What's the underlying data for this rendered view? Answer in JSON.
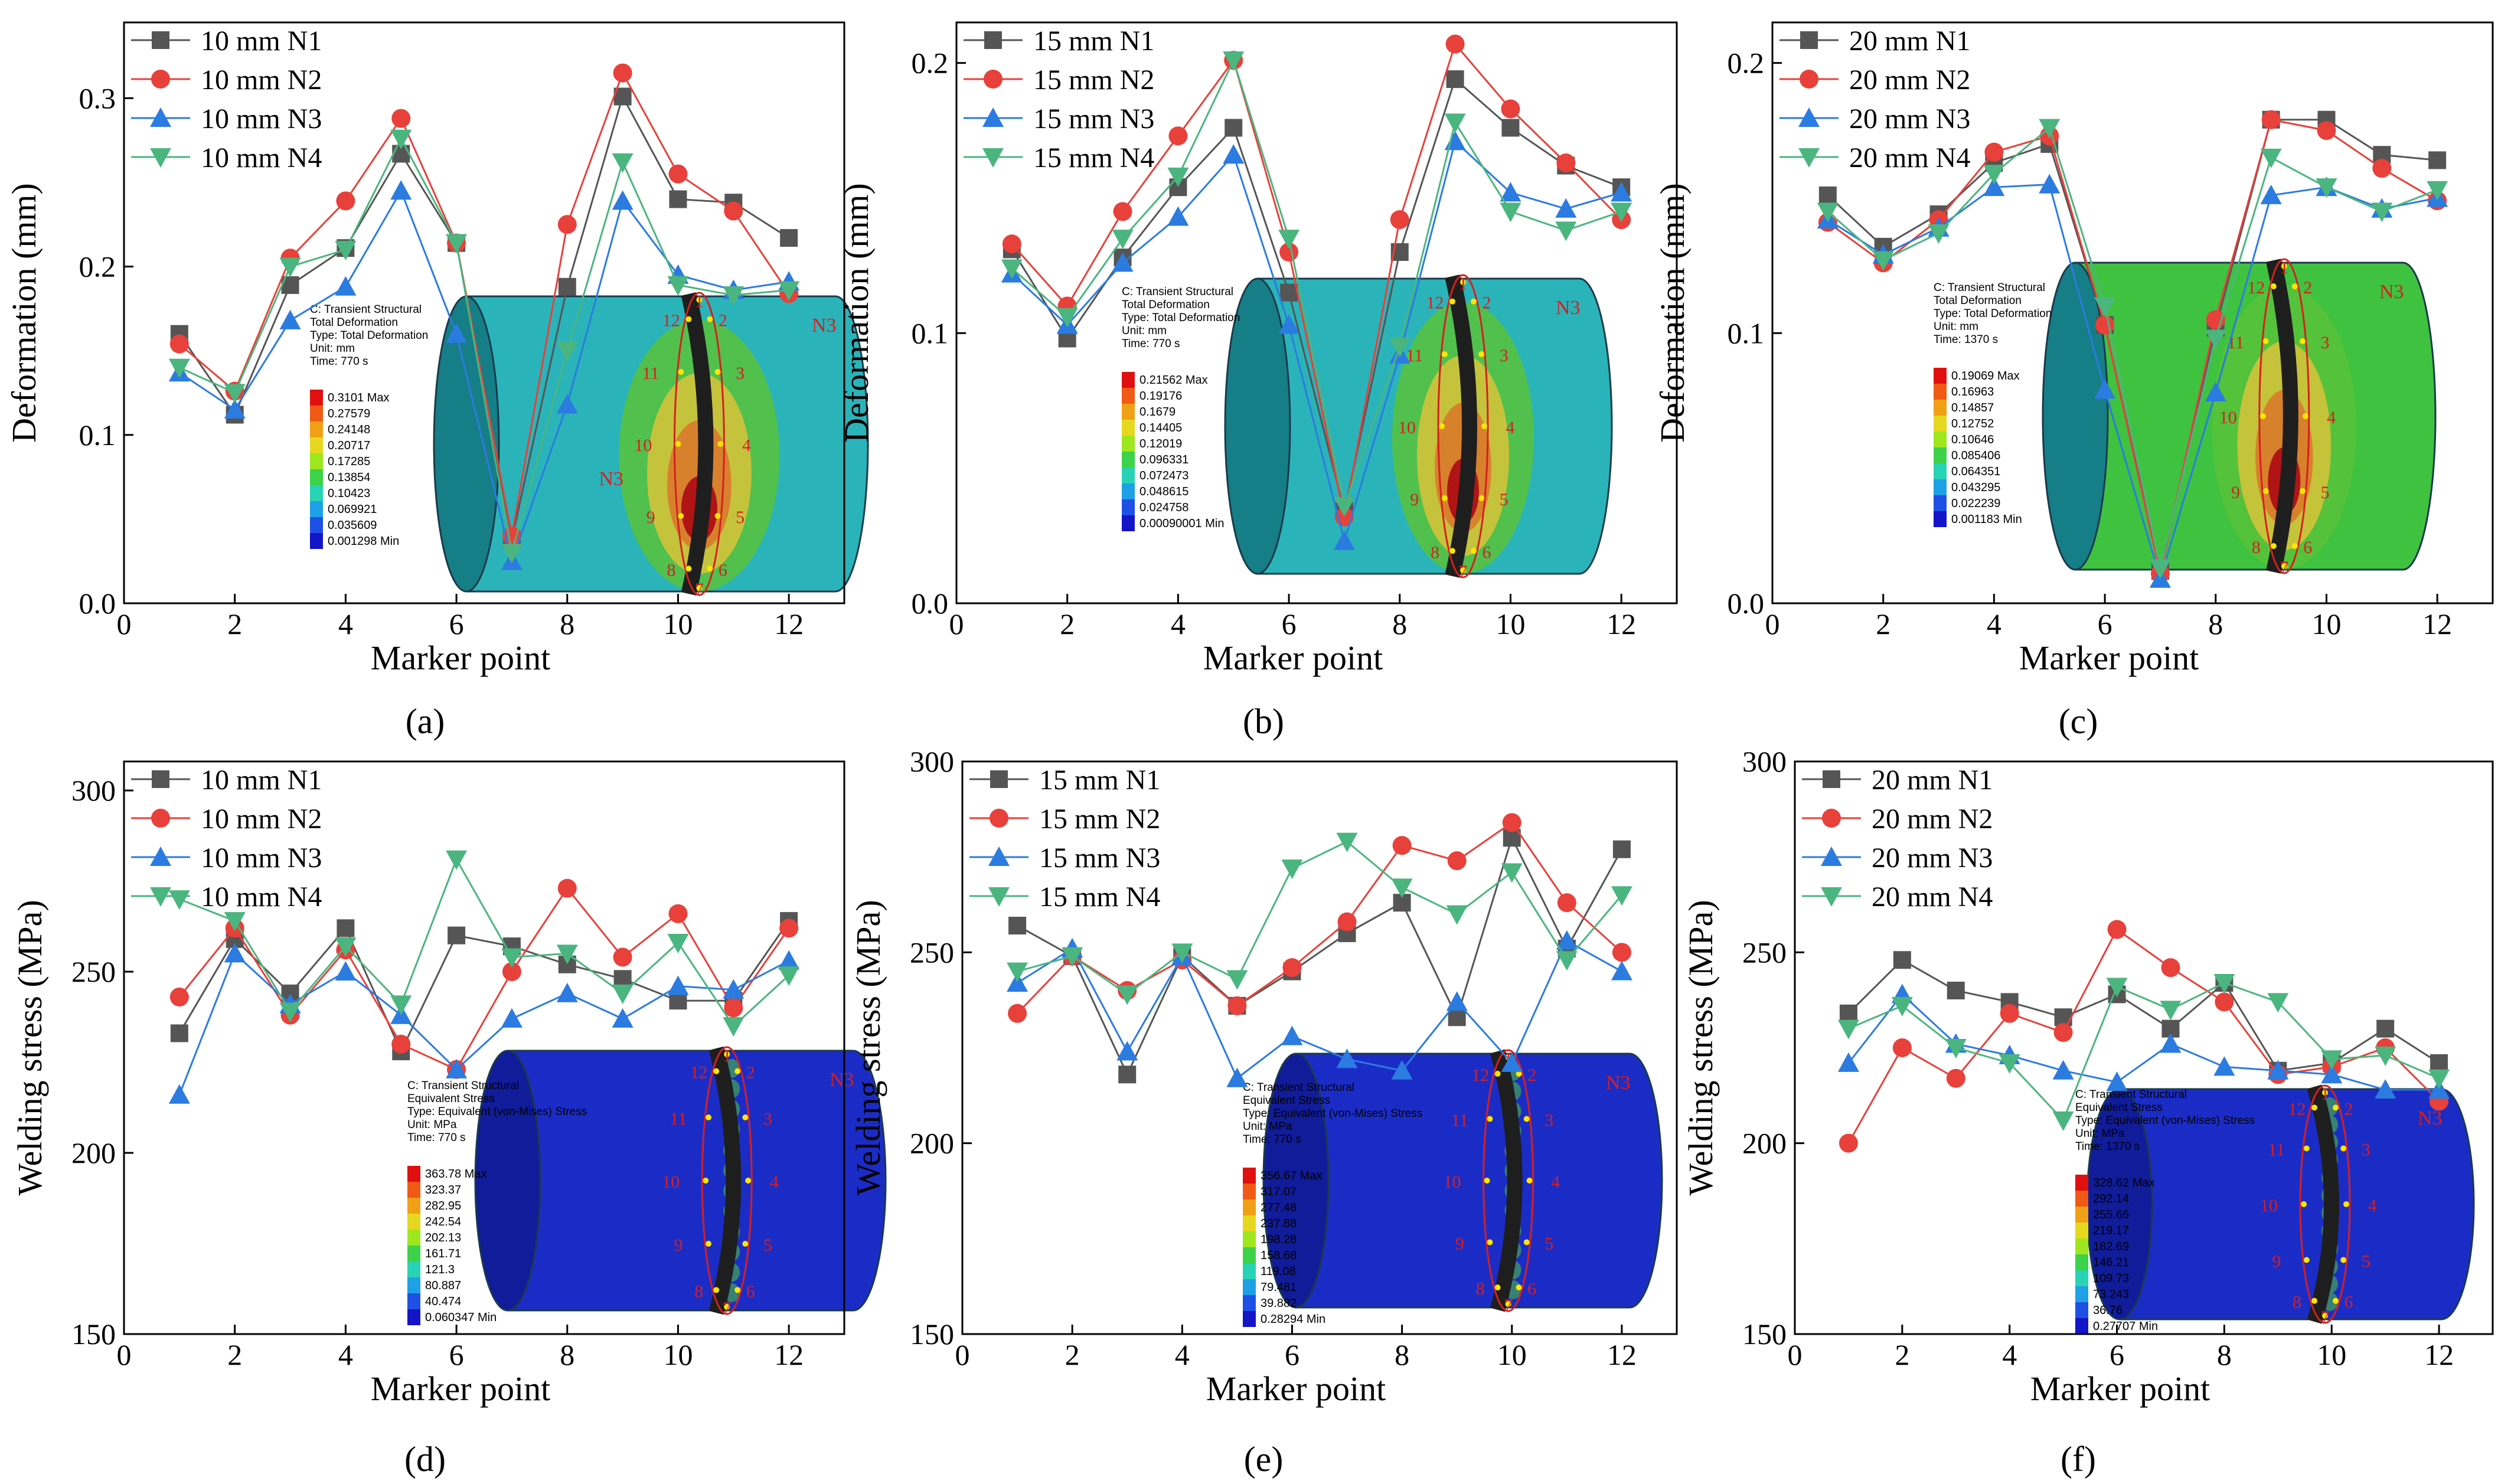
{
  "figure_type": "multi-panel-line-chart",
  "inset_type": "finite-element-contour-plot",
  "colors": {
    "N1": "#555555",
    "N2": "#e8403a",
    "N3": "#2b7be0",
    "N4": "#4bb57f",
    "inset_deformation_body": "#2ab4ba",
    "inset_stress_body": "#1b2cc6",
    "marker_label": "#d61f1f",
    "marker_dot": "#ffe600"
  },
  "legend_markers": [
    "square",
    "circle",
    "triangle-up",
    "triangle-down"
  ],
  "chart_data": [
    {
      "panel": "(a)",
      "type": "line",
      "xlabel": "Marker point",
      "ylabel": "Deformation (mm)",
      "xlim": [
        0,
        13
      ],
      "ylim": [
        0,
        0.345
      ],
      "xticks": [
        "0",
        "2",
        "4",
        "6",
        "8",
        "10",
        "12"
      ],
      "yticks": [
        "0.0",
        "0.1",
        "0.2",
        "0.3"
      ],
      "ytick_values": [
        0,
        0.1,
        0.2,
        0.3
      ],
      "legend_position": "top-left",
      "x": [
        1,
        2,
        3,
        4,
        5,
        6,
        7,
        8,
        9,
        10,
        11,
        12
      ],
      "series": [
        {
          "name": "10 mm N1",
          "values": [
            0.16,
            0.112,
            0.189,
            0.211,
            0.267,
            0.214,
            0.038,
            0.188,
            0.301,
            0.24,
            0.238,
            0.217
          ]
        },
        {
          "name": "10 mm N2",
          "values": [
            0.154,
            0.126,
            0.205,
            0.239,
            0.288,
            0.214,
            0.04,
            0.225,
            0.315,
            0.255,
            0.233,
            0.184
          ]
        },
        {
          "name": "10 mm N3",
          "values": [
            0.137,
            0.115,
            0.168,
            0.188,
            0.245,
            0.16,
            0.025,
            0.118,
            0.239,
            0.195,
            0.186,
            0.191
          ]
        },
        {
          "name": "10 mm N4",
          "values": [
            0.14,
            0.125,
            0.2,
            0.21,
            0.276,
            0.214,
            0.03,
            0.15,
            0.262,
            0.189,
            0.183,
            0.186
          ]
        }
      ],
      "inset": {
        "header": [
          "C: Transient Structural",
          "Total Deformation",
          "Type: Total Deformation",
          "Unit: mm",
          "Time: 770 s"
        ],
        "scale": [
          "0.3101 Max",
          "0.27579",
          "0.24148",
          "0.20717",
          "0.17285",
          "0.13854",
          "0.10423",
          "0.069921",
          "0.035609",
          "0.001298 Min"
        ],
        "body": "deformation",
        "tag": "N3",
        "extra_tag": "N3",
        "markers": [
          "1",
          "2",
          "3",
          "4",
          "5",
          "6",
          "7",
          "8",
          "9",
          "10",
          "11",
          "12"
        ]
      }
    },
    {
      "panel": "(b)",
      "type": "line",
      "xlabel": "Marker point",
      "ylabel": "Deformation (mm)",
      "xlim": [
        0,
        13
      ],
      "ylim": [
        0,
        0.215
      ],
      "xticks": [
        "0",
        "2",
        "4",
        "6",
        "8",
        "10",
        "12"
      ],
      "yticks": [
        "0.0",
        "0.1",
        "0.2"
      ],
      "ytick_values": [
        0,
        0.1,
        0.2
      ],
      "legend_position": "top-left",
      "x": [
        1,
        2,
        3,
        4,
        5,
        6,
        7,
        8,
        9,
        10,
        11,
        12
      ],
      "series": [
        {
          "name": "15 mm N1",
          "values": [
            0.131,
            0.098,
            0.128,
            0.154,
            0.176,
            0.115,
            0.034,
            0.13,
            0.194,
            0.176,
            0.162,
            0.154
          ]
        },
        {
          "name": "15 mm N2",
          "values": [
            0.133,
            0.11,
            0.145,
            0.173,
            0.201,
            0.13,
            0.032,
            0.142,
            0.207,
            0.183,
            0.163,
            0.142
          ]
        },
        {
          "name": "15 mm N3",
          "values": [
            0.122,
            0.103,
            0.126,
            0.143,
            0.166,
            0.103,
            0.023,
            0.092,
            0.171,
            0.152,
            0.146,
            0.152
          ]
        },
        {
          "name": "15 mm N4",
          "values": [
            0.124,
            0.106,
            0.135,
            0.158,
            0.201,
            0.135,
            0.036,
            0.095,
            0.178,
            0.145,
            0.138,
            0.145
          ]
        }
      ],
      "inset": {
        "header": [
          "C: Transient Structural",
          "Total Deformation",
          "Type: Total Deformation",
          "Unit: mm",
          "Time: 770 s"
        ],
        "scale": [
          "0.21562 Max",
          "0.19176",
          "0.1679",
          "0.14405",
          "0.12019",
          "0.096331",
          "0.072473",
          "0.048615",
          "0.024758",
          "0.00090001 Min"
        ],
        "body": "deformation",
        "tag": "N3",
        "extra_tag": "",
        "markers": [
          "1",
          "2",
          "3",
          "4",
          "5",
          "6",
          "7",
          "8",
          "9",
          "10",
          "11",
          "12"
        ]
      }
    },
    {
      "panel": "(c)",
      "type": "line",
      "xlabel": "Marker point",
      "ylabel": "Deformation (mm)",
      "xlim": [
        0,
        13
      ],
      "ylim": [
        0,
        0.215
      ],
      "xticks": [
        "0",
        "2",
        "4",
        "6",
        "8",
        "10",
        "12"
      ],
      "yticks": [
        "0.0",
        "0.1",
        "0.2"
      ],
      "ytick_values": [
        0,
        0.1,
        0.2
      ],
      "legend_position": "top-left",
      "x": [
        1,
        2,
        3,
        4,
        5,
        6,
        7,
        8,
        9,
        10,
        11,
        12
      ],
      "series": [
        {
          "name": "20 mm N1",
          "values": [
            0.151,
            0.132,
            0.144,
            0.163,
            0.17,
            0.103,
            0.012,
            0.102,
            0.179,
            0.179,
            0.166,
            0.164
          ]
        },
        {
          "name": "20 mm N2",
          "values": [
            0.141,
            0.126,
            0.142,
            0.167,
            0.173,
            0.103,
            0.011,
            0.105,
            0.179,
            0.175,
            0.161,
            0.149
          ]
        },
        {
          "name": "20 mm N3",
          "values": [
            0.142,
            0.129,
            0.139,
            0.154,
            0.155,
            0.079,
            0.009,
            0.078,
            0.151,
            0.154,
            0.146,
            0.15
          ]
        },
        {
          "name": "20 mm N4",
          "values": [
            0.145,
            0.127,
            0.137,
            0.159,
            0.176,
            0.11,
            0.013,
            0.098,
            0.165,
            0.154,
            0.145,
            0.153
          ]
        }
      ],
      "inset": {
        "header": [
          "C: Transient Structural",
          "Total Deformation",
          "Type: Total Deformation",
          "Unit: mm",
          "Time: 1370 s"
        ],
        "scale": [
          "0.19069 Max",
          "0.16963",
          "0.14857",
          "0.12752",
          "0.10646",
          "0.085406",
          "0.064351",
          "0.043295",
          "0.022239",
          "0.001183 Min"
        ],
        "body": "deformation-green",
        "tag": "N3",
        "extra_tag": "",
        "markers": [
          "1",
          "2",
          "3",
          "4",
          "5",
          "6",
          "7",
          "8",
          "9",
          "10",
          "11",
          "12"
        ]
      }
    },
    {
      "panel": "(d)",
      "type": "line",
      "xlabel": "Marker point",
      "ylabel": "Welding stress (MPa)",
      "xlim": [
        0,
        13
      ],
      "ylim": [
        150,
        308
      ],
      "xticks": [
        "0",
        "2",
        "4",
        "6",
        "8",
        "10",
        "12"
      ],
      "yticks": [
        "150",
        "200",
        "250",
        "300"
      ],
      "ytick_values": [
        150,
        200,
        250,
        300
      ],
      "legend_position": "top-left",
      "x": [
        1,
        2,
        3,
        4,
        5,
        6,
        7,
        8,
        9,
        10,
        11,
        12
      ],
      "series": [
        {
          "name": "10 mm N1",
          "values": [
            233,
            259,
            244,
            262,
            228,
            260,
            257,
            252,
            248,
            242,
            242,
            264
          ]
        },
        {
          "name": "10 mm N2",
          "values": [
            243,
            262,
            238,
            256,
            230,
            223,
            250,
            273,
            254,
            266,
            240,
            262
          ]
        },
        {
          "name": "10 mm N3",
          "values": [
            216,
            255,
            241,
            250,
            238,
            223,
            237,
            244,
            237,
            246,
            245,
            253
          ]
        },
        {
          "name": "10 mm N4",
          "values": [
            270,
            264,
            239,
            257,
            241,
            281,
            254,
            255,
            244,
            258,
            235,
            249
          ]
        }
      ],
      "inset": {
        "header": [
          "C: Transient Structural",
          "Equivalent Stress",
          "Type: Equivalent (von-Mises) Stress",
          "Unit: MPa",
          "Time: 770 s"
        ],
        "scale": [
          "363.78 Max",
          "323.37",
          "282.95",
          "242.54",
          "202.13",
          "161.71",
          "121.3",
          "80.887",
          "40.474",
          "0.060347 Min"
        ],
        "body": "stress",
        "tag": "N3",
        "extra_tag": "",
        "markers": [
          "1",
          "2",
          "3",
          "4",
          "5",
          "6",
          "7",
          "8",
          "9",
          "10",
          "11",
          "12"
        ]
      }
    },
    {
      "panel": "(e)",
      "type": "line",
      "xlabel": "Marker point",
      "ylabel": "Welding stress (MPa)",
      "xlim": [
        0,
        13
      ],
      "ylim": [
        150,
        300
      ],
      "xticks": [
        "0",
        "2",
        "4",
        "6",
        "8",
        "10",
        "12"
      ],
      "yticks": [
        "150",
        "200",
        "250",
        "300"
      ],
      "ytick_values": [
        150,
        200,
        250,
        300
      ],
      "legend_position": "top-left",
      "x": [
        1,
        2,
        3,
        4,
        5,
        6,
        7,
        8,
        9,
        10,
        11,
        12
      ],
      "series": [
        {
          "name": "15 mm N1",
          "values": [
            257,
            249,
            218,
            249,
            236,
            245,
            255,
            263,
            233,
            280,
            251,
            277
          ]
        },
        {
          "name": "15 mm N2",
          "values": [
            234,
            249,
            240,
            248,
            236,
            246,
            258,
            278,
            274,
            284,
            263,
            250
          ]
        },
        {
          "name": "15 mm N3",
          "values": [
            242,
            251,
            224,
            249,
            217,
            228,
            222,
            219,
            237,
            221,
            253,
            245
          ]
        },
        {
          "name": "15 mm N4",
          "values": [
            245,
            249,
            239,
            250,
            243,
            272,
            279,
            267,
            260,
            271,
            248,
            265
          ]
        }
      ],
      "inset": {
        "header": [
          "C: Transient Structural",
          "Equivalent Stress",
          "Type: Equivalent (von-Mises) Stress",
          "Unit: MPa",
          "Time: 770 s"
        ],
        "scale": [
          "356.67 Max",
          "317.07",
          "277.48",
          "237.88",
          "198.28",
          "158.68",
          "119.08",
          "79.481",
          "39.882",
          "0.28294 Min"
        ],
        "body": "stress",
        "tag": "N3",
        "extra_tag": "",
        "markers": [
          "1",
          "2",
          "3",
          "4",
          "5",
          "6",
          "7",
          "8",
          "9",
          "10",
          "11",
          "12"
        ]
      }
    },
    {
      "panel": "(f)",
      "type": "line",
      "xlabel": "Marker point",
      "ylabel": "Welding stress (MPa)",
      "xlim": [
        0,
        13
      ],
      "ylim": [
        150,
        300
      ],
      "xticks": [
        "0",
        "2",
        "4",
        "6",
        "8",
        "10",
        "12"
      ],
      "yticks": [
        "150",
        "200",
        "250",
        "300"
      ],
      "ytick_values": [
        150,
        200,
        250,
        300
      ],
      "legend_position": "top-left",
      "x": [
        1,
        2,
        3,
        4,
        5,
        6,
        7,
        8,
        9,
        10,
        11,
        12
      ],
      "series": [
        {
          "name": "20 mm N1",
          "values": [
            234,
            248,
            240,
            237,
            233,
            239,
            230,
            242,
            219,
            221,
            230,
            221
          ]
        },
        {
          "name": "20 mm N2",
          "values": [
            200,
            225,
            217,
            234,
            229,
            256,
            246,
            237,
            218,
            220,
            225,
            211
          ]
        },
        {
          "name": "20 mm N3",
          "values": [
            221,
            239,
            226,
            223,
            219,
            216,
            226,
            220,
            219,
            218,
            214,
            214
          ]
        },
        {
          "name": "20 mm N4",
          "values": [
            230,
            236,
            225,
            221,
            206,
            241,
            235,
            242,
            237,
            222,
            223,
            217
          ]
        }
      ],
      "inset": {
        "header": [
          "C: Transient Structural",
          "Equivalent Stress",
          "Type: Equivalent (von-Mises) Stress",
          "Unit: MPa",
          "Time: 1370 s"
        ],
        "scale": [
          "328.62 Max",
          "292.14",
          "255.66",
          "219.17",
          "182.69",
          "146.21",
          "109.73",
          "73.243",
          "36.76",
          "0.27707 Min"
        ],
        "body": "stress",
        "tag": "N3",
        "extra_tag": "",
        "markers": [
          "1",
          "2",
          "3",
          "4",
          "5",
          "6",
          "7",
          "8",
          "9",
          "10",
          "11",
          "12"
        ]
      }
    }
  ]
}
